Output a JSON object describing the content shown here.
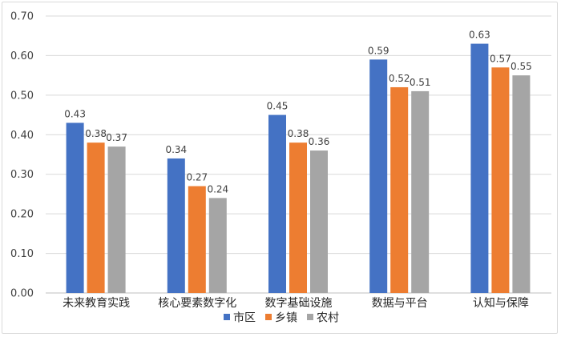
{
  "chart_data": {
    "type": "bar",
    "title": "",
    "xlabel": "",
    "ylabel": "",
    "ylim": [
      0,
      0.7
    ],
    "yticks": [
      "0.00",
      "0.10",
      "0.20",
      "0.30",
      "0.40",
      "0.50",
      "0.60",
      "0.70"
    ],
    "grid": true,
    "legend_position": "bottom",
    "categories": [
      "未来教育实践",
      "核心要素数字化",
      "数字基础设施",
      "数据与平台",
      "认知与保障"
    ],
    "series": [
      {
        "name": "市区",
        "color": "#4472c4",
        "values": [
          0.43,
          0.34,
          0.45,
          0.59,
          0.63
        ],
        "labels": [
          "0.43",
          "0.34",
          "0.45",
          "0.59",
          "0.63"
        ]
      },
      {
        "name": "乡镇",
        "color": "#ed7d31",
        "values": [
          0.38,
          0.27,
          0.38,
          0.52,
          0.57
        ],
        "labels": [
          "0.38",
          "0.27",
          "0.38",
          "0.52",
          "0.57"
        ]
      },
      {
        "name": "农村",
        "color": "#a5a5a5",
        "values": [
          0.37,
          0.24,
          0.36,
          0.51,
          0.55
        ],
        "labels": [
          "0.37",
          "0.24",
          "0.36",
          "0.51",
          "0.55"
        ]
      }
    ]
  }
}
